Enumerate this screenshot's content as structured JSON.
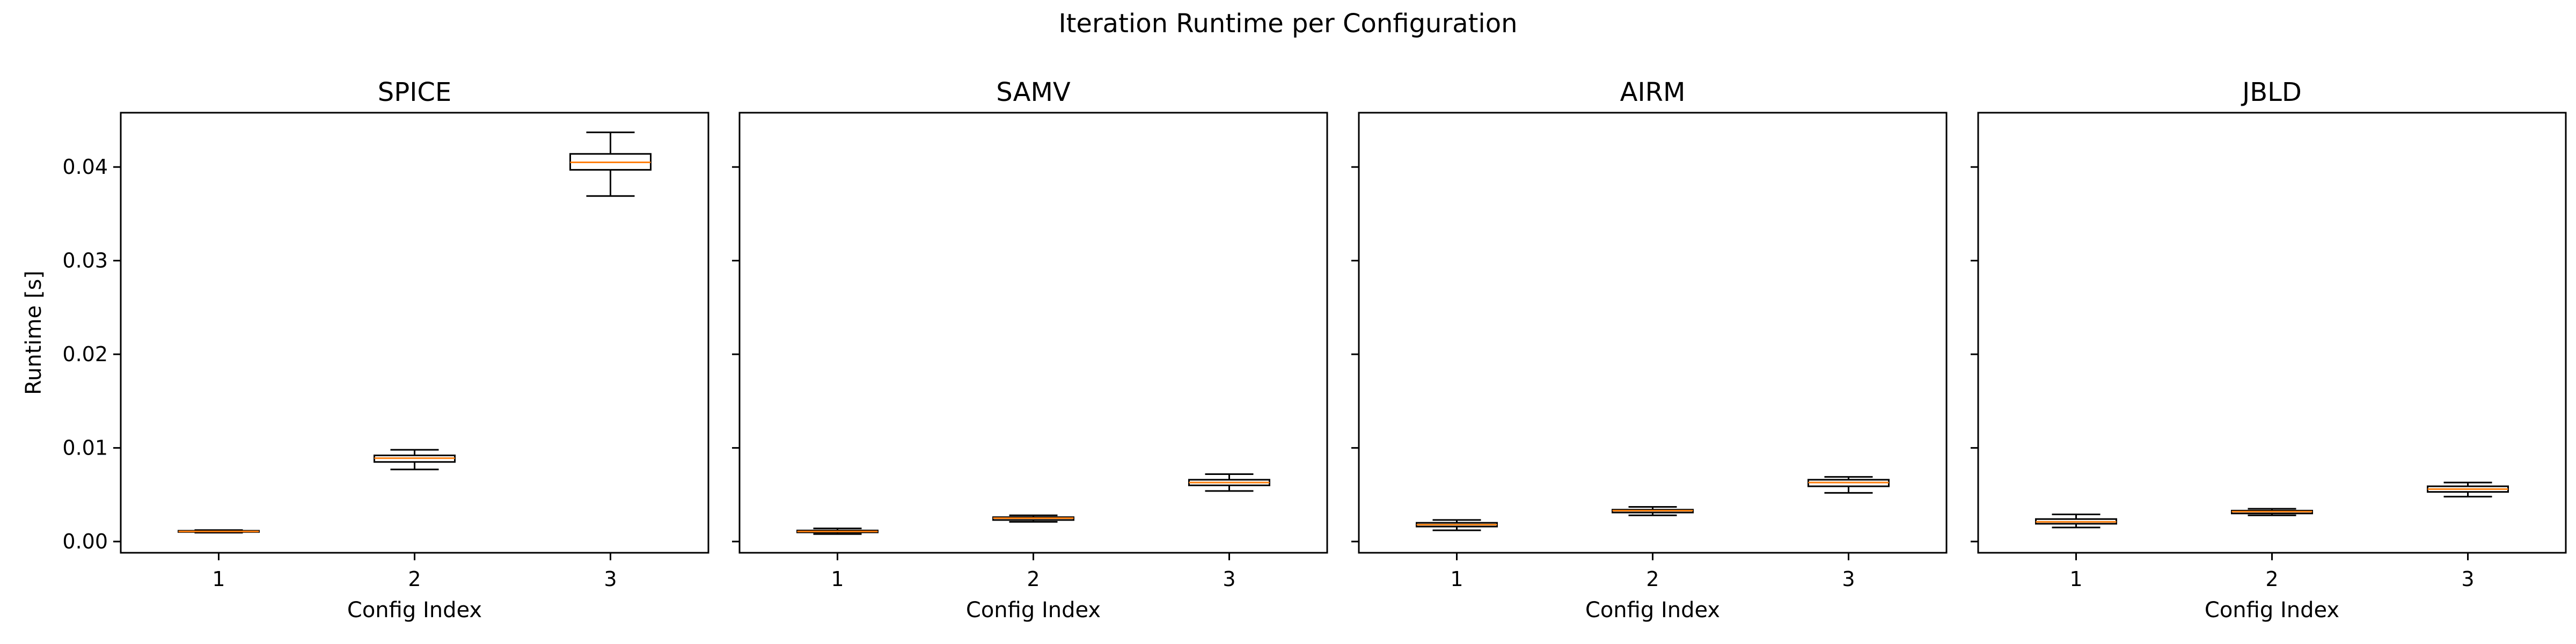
{
  "suptitle": "Iteration Runtime per Configuration",
  "colors": {
    "box_edge": "#000000",
    "median": "#ff7f0e",
    "box_fill": "#ffffff",
    "axes_edge": "#000000"
  },
  "chart_data": [
    {
      "type": "box",
      "title": "SPICE",
      "xlabel": "Config Index",
      "ylabel": "Runtime [s]",
      "categories": [
        "1",
        "2",
        "3"
      ],
      "ylim": [
        -0.0012,
        0.0458
      ],
      "yticks": [
        "0.00",
        "0.01",
        "0.02",
        "0.03",
        "0.04"
      ],
      "boxes": [
        {
          "whisker_low": 0.00095,
          "q1": 0.00102,
          "median": 0.00108,
          "q3": 0.00115,
          "whisker_high": 0.00122
        },
        {
          "whisker_low": 0.0077,
          "q1": 0.0085,
          "median": 0.0089,
          "q3": 0.0092,
          "whisker_high": 0.0098
        },
        {
          "whisker_low": 0.0369,
          "q1": 0.0397,
          "median": 0.0405,
          "q3": 0.0414,
          "whisker_high": 0.0437
        }
      ]
    },
    {
      "type": "box",
      "title": "SAMV",
      "xlabel": "Config Index",
      "ylabel": "",
      "categories": [
        "1",
        "2",
        "3"
      ],
      "ylim": [
        -0.0012,
        0.0458
      ],
      "yticks": [
        "",
        "",
        "",
        "",
        ""
      ],
      "boxes": [
        {
          "whisker_low": 0.0008,
          "q1": 0.00098,
          "median": 0.00108,
          "q3": 0.00118,
          "whisker_high": 0.0014
        },
        {
          "whisker_low": 0.0021,
          "q1": 0.0023,
          "median": 0.0025,
          "q3": 0.0026,
          "whisker_high": 0.0028
        },
        {
          "whisker_low": 0.0054,
          "q1": 0.006,
          "median": 0.0063,
          "q3": 0.0066,
          "whisker_high": 0.0072
        }
      ]
    },
    {
      "type": "box",
      "title": "AIRM",
      "xlabel": "Config Index",
      "ylabel": "",
      "categories": [
        "1",
        "2",
        "3"
      ],
      "ylim": [
        -0.0012,
        0.0458
      ],
      "yticks": [
        "",
        "",
        "",
        "",
        ""
      ],
      "boxes": [
        {
          "whisker_low": 0.0012,
          "q1": 0.0016,
          "median": 0.0018,
          "q3": 0.002,
          "whisker_high": 0.0023
        },
        {
          "whisker_low": 0.0028,
          "q1": 0.0031,
          "median": 0.0033,
          "q3": 0.0034,
          "whisker_high": 0.0037
        },
        {
          "whisker_low": 0.0052,
          "q1": 0.0059,
          "median": 0.0063,
          "q3": 0.0066,
          "whisker_high": 0.0069
        }
      ]
    },
    {
      "type": "box",
      "title": "JBLD",
      "xlabel": "Config Index",
      "ylabel": "",
      "categories": [
        "1",
        "2",
        "3"
      ],
      "ylim": [
        -0.0012,
        0.0458
      ],
      "yticks": [
        "",
        "",
        "",
        "",
        ""
      ],
      "boxes": [
        {
          "whisker_low": 0.0015,
          "q1": 0.0019,
          "median": 0.0021,
          "q3": 0.0024,
          "whisker_high": 0.0029
        },
        {
          "whisker_low": 0.0028,
          "q1": 0.003,
          "median": 0.0032,
          "q3": 0.0033,
          "whisker_high": 0.0035
        },
        {
          "whisker_low": 0.0048,
          "q1": 0.0053,
          "median": 0.0056,
          "q3": 0.0059,
          "whisker_high": 0.0063
        }
      ]
    }
  ]
}
